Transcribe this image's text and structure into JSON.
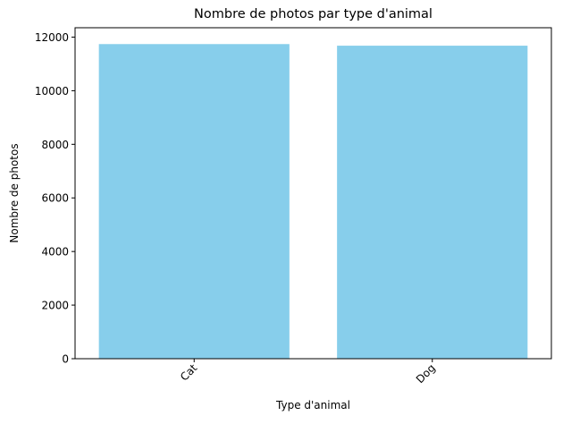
{
  "chart_data": {
    "type": "bar",
    "title": "Nombre de photos par type d'animal",
    "xlabel": "Type d'animal",
    "ylabel": "Nombre de photos",
    "categories": [
      "Cat",
      "Dog"
    ],
    "values": [
      11740,
      11680
    ],
    "ylim": [
      0,
      12350
    ],
    "yticks": [
      0,
      2000,
      4000,
      6000,
      8000,
      10000,
      12000
    ],
    "yticks_labels": [
      "0",
      "2000",
      "4000",
      "6000",
      "8000",
      "10000",
      "12000"
    ],
    "grid": false,
    "legend": "none",
    "bar_color": "#87ceeb"
  }
}
